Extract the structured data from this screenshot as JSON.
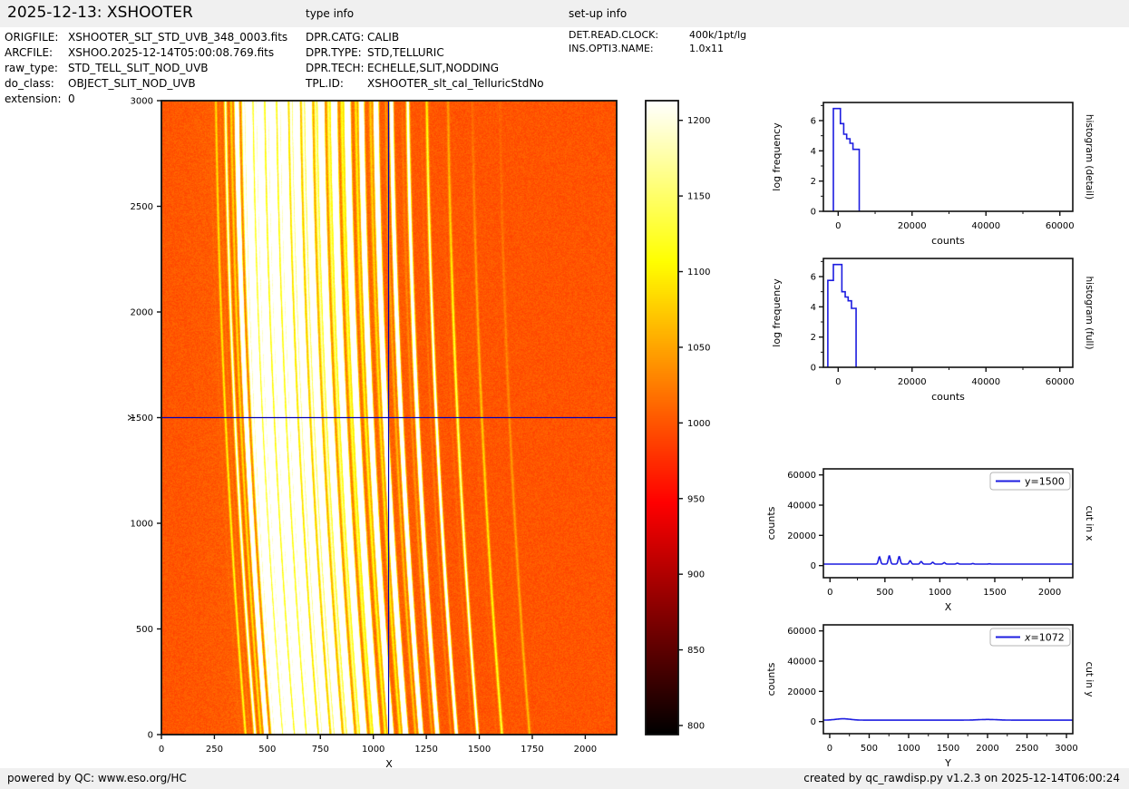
{
  "header": {
    "title": "2025-12-13: XSHOOTER",
    "type_info_label": "type info",
    "setup_info_label": "set-up info"
  },
  "file_info": [
    {
      "label": "ORIGFILE:",
      "value": "XSHOOTER_SLT_STD_UVB_348_0003.fits"
    },
    {
      "label": "ARCFILE:",
      "value": "XSHOO.2025-12-14T05:00:08.769.fits"
    },
    {
      "label": "raw_type:",
      "value": "STD_TELL_SLIT_NOD_UVB"
    },
    {
      "label": "do_class:",
      "value": "OBJECT_SLIT_NOD_UVB"
    },
    {
      "label": "extension:",
      "value": "0"
    }
  ],
  "type_info": [
    {
      "label": "DPR.CATG:",
      "value": "CALIB"
    },
    {
      "label": "DPR.TYPE:",
      "value": "STD,TELLURIC"
    },
    {
      "label": "DPR.TECH:",
      "value": "ECHELLE,SLIT,NODDING"
    },
    {
      "label": "TPL.ID:",
      "value": "XSHOOTER_slt_cal_TelluricStdNo"
    }
  ],
  "setup_info": [
    {
      "label": "DET.READ.CLOCK:",
      "value": "400k/1pt/lg"
    },
    {
      "label": "INS.OPTI3.NAME:",
      "value": "1.0x11"
    }
  ],
  "footer": {
    "left": "powered by QC: www.eso.org/HC",
    "right": "created by qc_rawdisp.py v1.2.3 on 2025-12-14T06:00:24"
  },
  "colors": {
    "plot_blue": "#1c1ce0",
    "crosshair_blue": "#0000b4",
    "axis_black": "#111111",
    "band_gray": "#f0f0f0"
  },
  "colorbar": {
    "ticks": [
      800,
      850,
      900,
      950,
      1000,
      1050,
      1100,
      1150,
      1200
    ],
    "clim": [
      794,
      1213
    ],
    "cmap": "hot"
  },
  "chart_data": [
    {
      "id": "raw_frame",
      "type": "heatmap",
      "xlabel": "X",
      "ylabel": "Y",
      "xlim": [
        0,
        2148
      ],
      "ylim": [
        0,
        3000
      ],
      "xticks": [
        0,
        250,
        500,
        750,
        1000,
        1250,
        1500,
        1750,
        2000
      ],
      "yticks": [
        0,
        500,
        1000,
        1500,
        2000,
        2500,
        3000
      ],
      "crosshair": {
        "x": 1072,
        "y": 1500
      },
      "background_counts": 1000,
      "noise_counts": 12,
      "clim": [
        794,
        1213
      ],
      "curve": {
        "s1": 70,
        "s2": 25
      },
      "companion": {
        "offset": -26,
        "amp_factor": 0.06
      },
      "scatter_glow": {
        "center": 700,
        "sigma": 350,
        "amp": 22
      },
      "orders": [
        [
          300,
          120,
          5,
          0.3
        ],
        [
          345,
          260,
          6,
          0.25
        ],
        [
          398,
          1500,
          7,
          0.15
        ],
        [
          455,
          5000,
          9,
          0.1
        ],
        [
          510,
          5200,
          9,
          0.08
        ],
        [
          566,
          5200,
          9,
          0.08
        ],
        [
          622,
          5000,
          9,
          0.08
        ],
        [
          679,
          4200,
          9,
          0.08
        ],
        [
          737,
          3600,
          9,
          0.08
        ],
        [
          796,
          3000,
          9,
          0.1
        ],
        [
          857,
          2600,
          9,
          0.12
        ],
        [
          920,
          2200,
          9,
          0.15
        ],
        [
          986,
          1900,
          8,
          0.2
        ],
        [
          1055,
          1700,
          8,
          0.3
        ],
        [
          1128,
          1300,
          7,
          0.55
        ],
        [
          1205,
          900,
          7,
          0.72
        ],
        [
          1295,
          550,
          6,
          0.82
        ],
        [
          1395,
          280,
          6,
          0.86
        ],
        [
          1510,
          140,
          6,
          0.9
        ],
        [
          1640,
          70,
          6,
          0.9
        ]
      ]
    },
    {
      "id": "hist_detail",
      "type": "area",
      "title": "histogram (detail)",
      "xlabel": "counts",
      "ylabel": "log frequency",
      "xlim": [
        -4000,
        63500
      ],
      "ylim": [
        0,
        7.2
      ],
      "xticks": [
        0,
        20000,
        40000,
        60000
      ],
      "yticks": [
        0,
        2,
        4,
        6
      ],
      "minor_x": 10000,
      "minor_y": [
        1,
        3,
        5,
        7
      ],
      "steps": [
        [
          -1300,
          6.8
        ],
        [
          600,
          5.8
        ],
        [
          1500,
          5.1
        ],
        [
          2300,
          4.8
        ],
        [
          3200,
          4.5
        ],
        [
          4000,
          4.1
        ],
        [
          5700,
          0
        ]
      ]
    },
    {
      "id": "hist_full",
      "type": "area",
      "title": "histogram (full)",
      "xlabel": "counts",
      "ylabel": "log frequency",
      "xlim": [
        -4000,
        63500
      ],
      "ylim": [
        0,
        7.2
      ],
      "xticks": [
        0,
        20000,
        40000,
        60000
      ],
      "yticks": [
        0,
        2,
        4,
        6
      ],
      "minor_x": 10000,
      "minor_y": [
        1,
        3,
        5,
        7
      ],
      "steps": [
        [
          -2800,
          5.75
        ],
        [
          -1300,
          6.8
        ],
        [
          1000,
          5.0
        ],
        [
          1900,
          4.65
        ],
        [
          2700,
          4.4
        ],
        [
          3600,
          3.9
        ],
        [
          4850,
          0
        ]
      ]
    },
    {
      "id": "cut_x",
      "type": "line",
      "title": "cut in x",
      "xlabel": "X",
      "ylabel": "counts",
      "legend": "y=1500",
      "xlim": [
        -60,
        2210
      ],
      "ylim": [
        -8000,
        64000
      ],
      "xticks": [
        0,
        500,
        1000,
        1500,
        2000
      ],
      "yticks": [
        0,
        20000,
        40000,
        60000
      ],
      "minor_x": 250,
      "baseline": 1000,
      "peak_width": 13,
      "peaks": [
        [
          450,
          4800
        ],
        [
          540,
          5500
        ],
        [
          630,
          5000
        ],
        [
          730,
          2200
        ],
        [
          830,
          1700
        ],
        [
          935,
          1200
        ],
        [
          1040,
          950
        ],
        [
          1160,
          600
        ],
        [
          1300,
          350
        ],
        [
          1450,
          200
        ]
      ]
    },
    {
      "id": "cut_y",
      "type": "line",
      "title": "cut in y",
      "xlabel": "Y",
      "ylabel": "counts",
      "legend": "x=1072",
      "xlim": [
        -80,
        3080
      ],
      "ylim": [
        -8000,
        64000
      ],
      "xticks": [
        0,
        500,
        1000,
        1500,
        2000,
        2500,
        3000
      ],
      "yticks": [
        0,
        20000,
        40000,
        60000
      ],
      "minor_x": 250,
      "baseline": 950,
      "bumps": [
        [
          170,
          900,
          130
        ],
        [
          2000,
          450,
          170
        ]
      ]
    }
  ]
}
